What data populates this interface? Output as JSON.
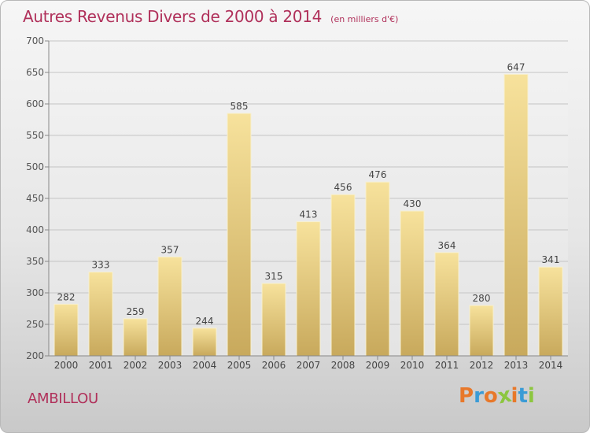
{
  "chart_data": {
    "type": "bar",
    "title": "Autres Revenus Divers de 2000 à 2014",
    "subtitle": "(en milliers d'€)",
    "categories": [
      "2000",
      "2001",
      "2002",
      "2003",
      "2004",
      "2005",
      "2006",
      "2007",
      "2008",
      "2009",
      "2010",
      "2011",
      "2012",
      "2013",
      "2014"
    ],
    "values": [
      282,
      333,
      259,
      357,
      244,
      585,
      315,
      413,
      456,
      476,
      430,
      364,
      280,
      647,
      341
    ],
    "ylim": [
      200,
      700
    ],
    "yticks": [
      200,
      250,
      300,
      350,
      400,
      450,
      500,
      550,
      600,
      650,
      700
    ],
    "grid": true,
    "bar_color_top": "#f7e29c",
    "bar_color_bottom": "#c8a95c"
  },
  "footer": {
    "commune": "AMBILLOU",
    "logo_text": "Proxiti",
    "logo_colors": [
      "#e8782a",
      "#3a9bd6",
      "#e8782a",
      "#8cc63e",
      "#e8782a",
      "#3a9bd6",
      "#8cc63e"
    ]
  }
}
